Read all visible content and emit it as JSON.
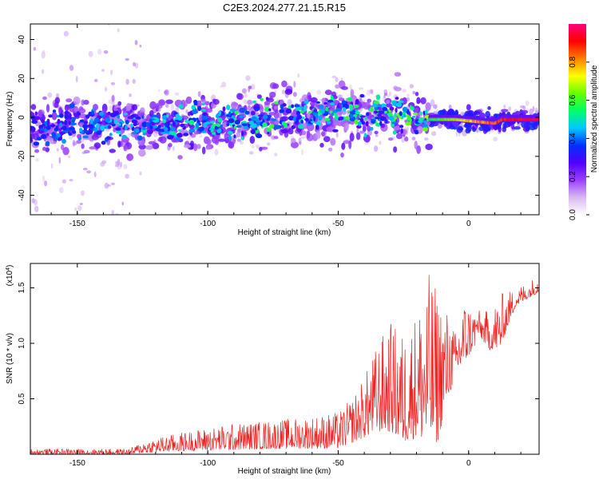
{
  "title": "C2E3.2024.277.21.15.R15",
  "chart_data": [
    {
      "type": "heatmap",
      "xlabel": "Height of straight line (km)",
      "ylabel": "Frequency (Hz)",
      "xlim": [
        -168,
        27
      ],
      "ylim": [
        -50,
        48
      ],
      "xticks": [
        -150,
        -100,
        -50,
        0
      ],
      "yticks": [
        -40,
        -20,
        0,
        20,
        40
      ],
      "colorbar": {
        "label": "Normalized spectral amplitude",
        "range": [
          0.0,
          1.0
        ],
        "ticks": [
          0.0,
          0.2,
          0.4,
          0.6,
          0.8
        ],
        "tick_labels": [
          "0.0",
          "0.2",
          "0.4",
          "0.6",
          "0.8"
        ],
        "colors": [
          "#ffffff",
          "#d8b8f0",
          "#9a40ff",
          "#5000ff",
          "#0030ff",
          "#00c8ff",
          "#00ff66",
          "#66ff00",
          "#ffff00",
          "#ff8000",
          "#ff0000",
          "#ff0080"
        ]
      },
      "ridge": [
        {
          "x": -168,
          "y": -5,
          "amp": 0.25
        },
        {
          "x": -150,
          "y": -4,
          "amp": 0.3
        },
        {
          "x": -125,
          "y": -4,
          "amp": 0.35
        },
        {
          "x": -100,
          "y": -2,
          "amp": 0.4
        },
        {
          "x": -75,
          "y": 0,
          "amp": 0.45
        },
        {
          "x": -50,
          "y": 2,
          "amp": 0.45
        },
        {
          "x": -25,
          "y": 2,
          "amp": 0.5
        },
        {
          "x": -15,
          "y": -1,
          "amp": 0.55
        },
        {
          "x": -5,
          "y": -1,
          "amp": 0.7
        },
        {
          "x": 10,
          "y": -3,
          "amp": 0.85
        },
        {
          "x": 13,
          "y": -1,
          "amp": 0.9
        },
        {
          "x": 27,
          "y": -1,
          "amp": 0.95
        }
      ]
    },
    {
      "type": "line",
      "xlabel": "Height of straight line (km)",
      "ylabel": "SNR (10 * v/v)",
      "y_multiplier": "(x10^4)",
      "xlim": [
        -168,
        27
      ],
      "ylim": [
        0,
        1.72
      ],
      "xticks": [
        -150,
        -100,
        -50,
        0
      ],
      "yticks": [
        0.5,
        1.0,
        1.5
      ],
      "ytick_labels": [
        "0.5",
        "1.0",
        "1.5"
      ],
      "series": [
        {
          "color": "#ee2222",
          "envelope": [
            {
              "x": -168,
              "lo": 0.0,
              "hi": 0.05
            },
            {
              "x": -130,
              "lo": 0.0,
              "hi": 0.05
            },
            {
              "x": -125,
              "lo": 0.01,
              "hi": 0.12
            },
            {
              "x": -110,
              "lo": 0.03,
              "hi": 0.2
            },
            {
              "x": -90,
              "lo": 0.04,
              "hi": 0.28
            },
            {
              "x": -70,
              "lo": 0.05,
              "hi": 0.32
            },
            {
              "x": -50,
              "lo": 0.05,
              "hi": 0.38
            },
            {
              "x": -45,
              "lo": 0.1,
              "hi": 0.5
            },
            {
              "x": -40,
              "lo": 0.15,
              "hi": 0.7
            },
            {
              "x": -35,
              "lo": 0.2,
              "hi": 1.0
            },
            {
              "x": -30,
              "lo": 0.2,
              "hi": 1.2
            },
            {
              "x": -25,
              "lo": 0.1,
              "hi": 1.1
            },
            {
              "x": -20,
              "lo": 0.15,
              "hi": 1.3
            },
            {
              "x": -15,
              "lo": 0.1,
              "hi": 1.65
            },
            {
              "x": -12,
              "lo": 0.1,
              "hi": 1.5
            },
            {
              "x": -8,
              "lo": 0.5,
              "hi": 1.3
            },
            {
              "x": -5,
              "lo": 0.7,
              "hi": 1.1
            },
            {
              "x": -2,
              "lo": 0.8,
              "hi": 1.4
            },
            {
              "x": 3,
              "lo": 1.0,
              "hi": 1.3
            },
            {
              "x": 8,
              "lo": 0.75,
              "hi": 1.3
            },
            {
              "x": 12,
              "lo": 0.7,
              "hi": 1.45
            },
            {
              "x": 18,
              "lo": 1.25,
              "hi": 1.5
            },
            {
              "x": 27,
              "lo": 1.38,
              "hi": 1.62
            }
          ]
        }
      ]
    }
  ]
}
